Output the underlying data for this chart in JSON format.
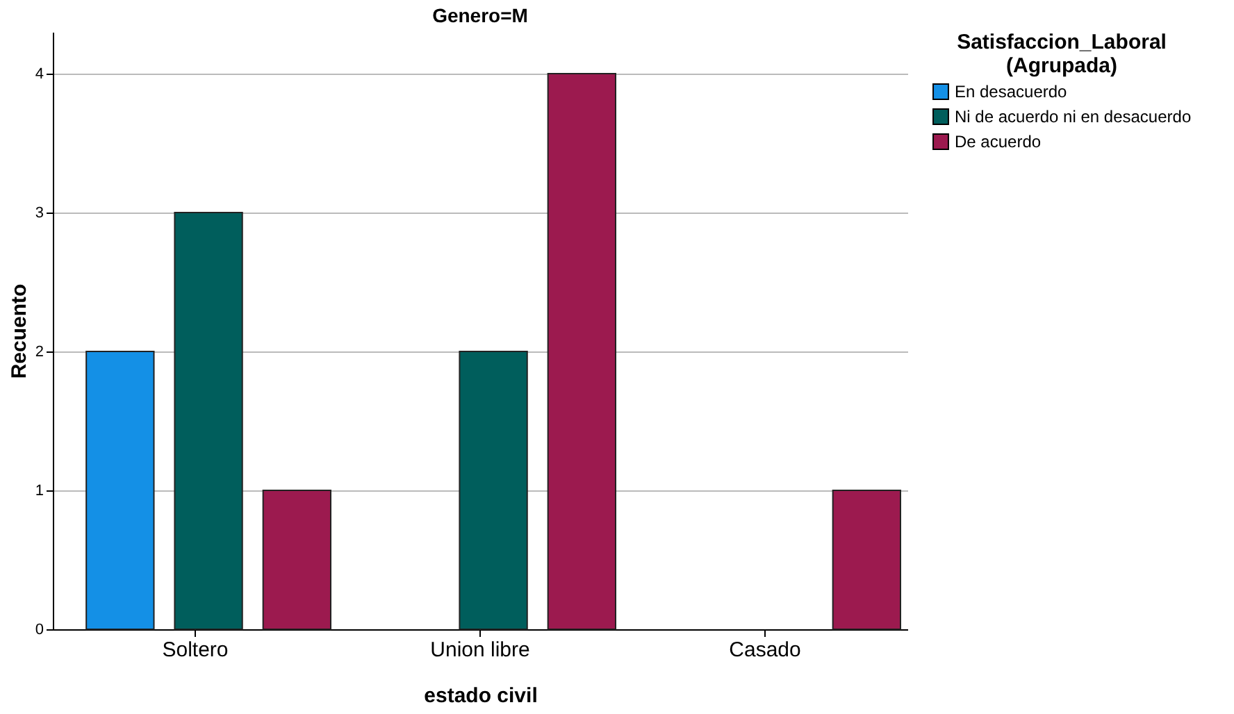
{
  "chart_data": {
    "type": "bar",
    "title": "Genero=M",
    "xlabel": "estado civil",
    "ylabel": "Recuento",
    "legend_title": "Satisfaccion_Laboral\n(Agrupada)",
    "categories": [
      "Soltero",
      "Union libre",
      "Casado"
    ],
    "series": [
      {
        "name": "En desacuerdo",
        "color": "#1490e6",
        "values": [
          2,
          null,
          null
        ]
      },
      {
        "name": "Ni de acuerdo ni en desacuerdo",
        "color": "#005e5c",
        "values": [
          3,
          2,
          null
        ]
      },
      {
        "name": "De acuerdo",
        "color": "#9c1a4f",
        "values": [
          1,
          4,
          1
        ]
      }
    ],
    "ylim": [
      0,
      4.3
    ],
    "yticks": [
      0,
      1,
      2,
      3,
      4
    ],
    "grid": "y",
    "legend": "top right"
  }
}
